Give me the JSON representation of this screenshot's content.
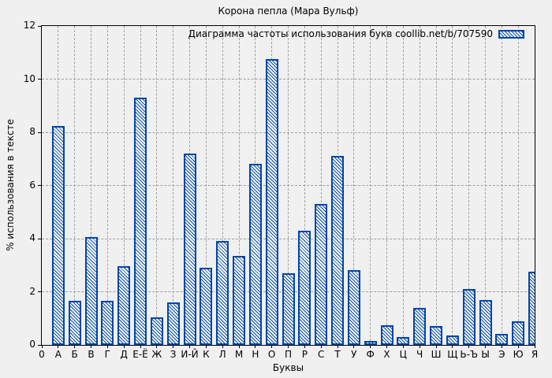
{
  "title": "Корона пепла (Мара Вульф)",
  "legend_label": "Диаграмма частоты использования букв coollib.net/b/707590",
  "x_axis_title": "Буквы",
  "y_axis_title": "% использования в тексте",
  "colors": {
    "bar_outline": "#0045a8",
    "bar_fill": "#ffffff",
    "background": "#f0f0f0",
    "gridline": "#a0a0a0",
    "axis": "#000000"
  },
  "chart_data": {
    "type": "bar",
    "title": "Корона пепла (Мара Вульф)",
    "legend": "Диаграмма частоты использования букв coollib.net/b/707590",
    "legend_position": "top-right-inside",
    "xlabel": "Буквы",
    "ylabel": "% использования в тексте",
    "ylim": [
      0,
      12
    ],
    "y_ticks": [
      0,
      2,
      4,
      6,
      8,
      10,
      12
    ],
    "x_origin_label": "0",
    "grid": true,
    "bar_style": "blue-diagonal-hatch-outline",
    "categories": [
      "А",
      "Б",
      "В",
      "Г",
      "Д",
      "Е-Ё",
      "Ж",
      "З",
      "И-Й",
      "К",
      "Л",
      "М",
      "Н",
      "О",
      "П",
      "Р",
      "С",
      "Т",
      "У",
      "Ф",
      "Х",
      "Ц",
      "Ч",
      "Ш",
      "Щ",
      "Ь-Ъ",
      "Ы",
      "Э",
      "Ю",
      "Я"
    ],
    "values": [
      8.25,
      1.65,
      4.05,
      1.65,
      2.95,
      9.3,
      1.05,
      1.6,
      7.2,
      2.9,
      3.9,
      3.35,
      6.8,
      10.75,
      2.7,
      4.3,
      5.3,
      7.1,
      2.8,
      0.15,
      0.75,
      0.3,
      1.4,
      0.7,
      0.35,
      2.1,
      1.7,
      0.4,
      0.9,
      2.75
    ]
  }
}
